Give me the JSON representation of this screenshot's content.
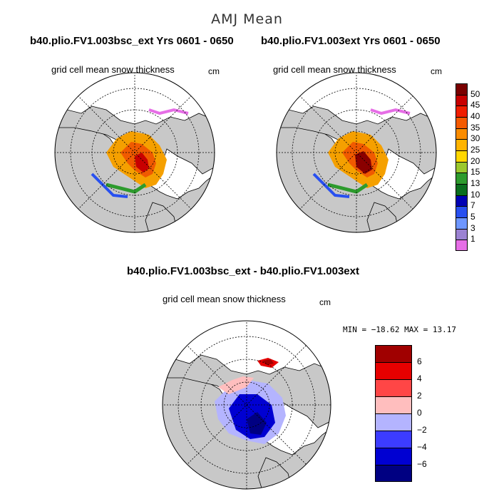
{
  "page": {
    "title": "AMJ Mean"
  },
  "panels": [
    {
      "run_title": "b40.plio.FV1.003bsc_ext  Yrs 0601 - 0650",
      "subtitle": "grid cell mean snow thickness",
      "units": "cm"
    },
    {
      "run_title": "b40.plio.FV1.003ext  Yrs 0601 - 0650",
      "subtitle": "grid cell mean snow thickness",
      "units": "cm"
    }
  ],
  "diff_panel": {
    "run_title": "b40.plio.FV1.003bsc_ext - b40.plio.FV1.003ext",
    "subtitle": "grid cell mean snow thickness",
    "units": "cm",
    "stats": "MIN = −18.62 MAX =  13.17"
  },
  "colorbar_top": {
    "labels": [
      "50",
      "45",
      "40",
      "35",
      "30",
      "25",
      "20",
      "15",
      "13",
      "10",
      "7",
      "5",
      "3",
      "1"
    ],
    "colors": [
      "#7a0000",
      "#c80000",
      "#f01e00",
      "#f55a00",
      "#fa8c00",
      "#ffb400",
      "#ffd700",
      "#9bc82d",
      "#2d9b2d",
      "#0a6e1e",
      "#0000b4",
      "#2850f0",
      "#6e96ff",
      "#9b82d2",
      "#e66ee6"
    ]
  },
  "colorbar_diff": {
    "labels": [
      "6",
      "4",
      "2",
      "0",
      "−2",
      "−4",
      "−6"
    ],
    "colors": [
      "#a00000",
      "#e60000",
      "#ff4646",
      "#ffbebe",
      "#b4b4ff",
      "#3c3cff",
      "#0000d2",
      "#000082"
    ]
  },
  "chart_data": {
    "type": "heatmap",
    "title": "AMJ Mean",
    "variable": "grid cell mean snow thickness",
    "units": "cm",
    "panels": [
      {
        "name": "b40.plio.FV1.003bsc_ext  Yrs 0601 - 0650",
        "projection": "north polar stereographic",
        "contour_levels": [
          1,
          3,
          5,
          7,
          10,
          13,
          15,
          20,
          25,
          30,
          35,
          40,
          45,
          50
        ]
      },
      {
        "name": "b40.plio.FV1.003ext  Yrs 0601 - 0650",
        "projection": "north polar stereographic",
        "contour_levels": [
          1,
          3,
          5,
          7,
          10,
          13,
          15,
          20,
          25,
          30,
          35,
          40,
          45,
          50
        ]
      },
      {
        "name": "b40.plio.FV1.003bsc_ext - b40.plio.FV1.003ext",
        "projection": "north polar stereographic",
        "contour_levels": [
          -6,
          -4,
          -2,
          0,
          2,
          4,
          6
        ],
        "min": -18.62,
        "max": 13.17
      }
    ]
  }
}
